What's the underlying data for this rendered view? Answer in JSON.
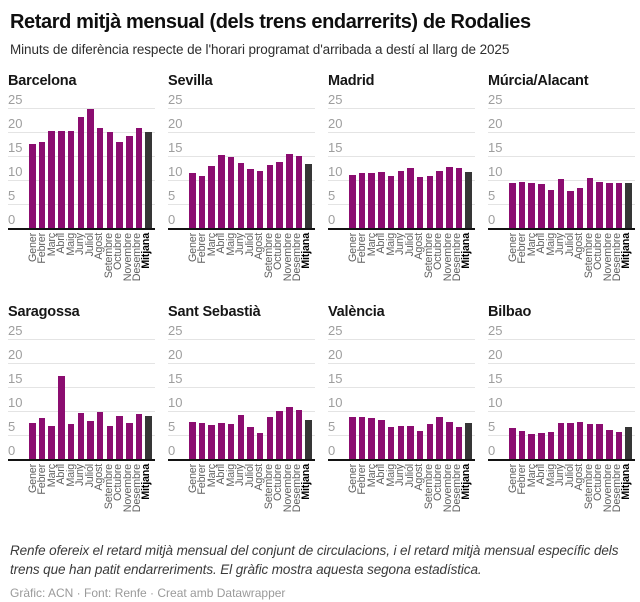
{
  "header": {
    "title": "Retard mitjà mensual (dels trens endarrerits) de Rodalies",
    "subtitle": "Minuts de diferència respecte de l'horari programat d'arribada a destí al llarg de 2025"
  },
  "colors": {
    "bar": "#8b0d70",
    "average_bar": "#363636",
    "grid": "#e4e4e4",
    "axis": "#131313",
    "tick_label": "#9e9e9e",
    "month_label": "#5f5f5f"
  },
  "chart_data": {
    "type": "bar",
    "title": "Retard mitjà mensual (dels trens endarrerits) de Rodalies",
    "subtitle": "Minuts de diferència respecte de l'horari programat d'arribada a destí al llarg de 2025",
    "unit": "minuts",
    "categories": [
      "Gener",
      "Febrer",
      "Març",
      "Abril",
      "Maig",
      "Juny",
      "Juliol",
      "Agost",
      "Setembre",
      "Octubre",
      "Novembre",
      "Desembre",
      "Mitjana"
    ],
    "last_category_is_average": true,
    "ylim": [
      0,
      25
    ],
    "yticks": [
      0,
      5,
      10,
      15,
      20,
      25
    ],
    "grid": true,
    "legend": "none",
    "panels": [
      {
        "name": "Barcelona",
        "values": [
          17.4,
          18.0,
          20.2,
          20.2,
          20.3,
          23.2,
          24.8,
          20.9,
          20.1,
          18.0,
          19.2,
          20.8,
          20.1
        ]
      },
      {
        "name": "Sevilla",
        "values": [
          11.4,
          10.9,
          12.9,
          15.3,
          14.8,
          13.5,
          12.2,
          11.9,
          13.2,
          13.8,
          15.5,
          15.1,
          13.4
        ]
      },
      {
        "name": "Madrid",
        "values": [
          11.0,
          11.5,
          11.5,
          11.7,
          10.8,
          11.9,
          12.4,
          10.6,
          10.8,
          11.9,
          12.7,
          12.4,
          11.7
        ]
      },
      {
        "name": "Múrcia/Alacant",
        "values": [
          9.3,
          9.5,
          9.3,
          9.2,
          7.9,
          10.3,
          7.8,
          8.3,
          10.5,
          9.6,
          9.3,
          9.4,
          9.3
        ]
      },
      {
        "name": "Saragossa",
        "values": [
          7.6,
          8.6,
          6.9,
          17.2,
          7.2,
          9.5,
          8.0,
          9.7,
          6.9,
          9.0,
          7.4,
          9.3,
          9.0
        ]
      },
      {
        "name": "Sant Sebastià",
        "values": [
          7.7,
          7.4,
          7.1,
          7.6,
          7.3,
          9.2,
          6.6,
          5.5,
          8.7,
          10.0,
          10.9,
          10.2,
          8.2
        ]
      },
      {
        "name": "València",
        "values": [
          8.7,
          8.8,
          8.6,
          8.1,
          6.6,
          6.9,
          6.8,
          5.8,
          7.3,
          8.8,
          7.8,
          6.7,
          7.6
        ]
      },
      {
        "name": "Bilbao",
        "values": [
          6.5,
          5.8,
          5.2,
          5.5,
          5.6,
          7.4,
          7.5,
          7.7,
          7.2,
          7.2,
          6.0,
          5.6,
          6.6
        ]
      }
    ]
  },
  "footer": {
    "note": "Renfe ofereix el retard mitjà mensual del conjunt de circulacions, i el retard mitjà mensual específic dels trens que han patit endarreriments. El gràfic mostra aquesta segona estadística.",
    "byline": "Gràfic: ACN · Font: Renfe · Creat amb Datawrapper"
  }
}
